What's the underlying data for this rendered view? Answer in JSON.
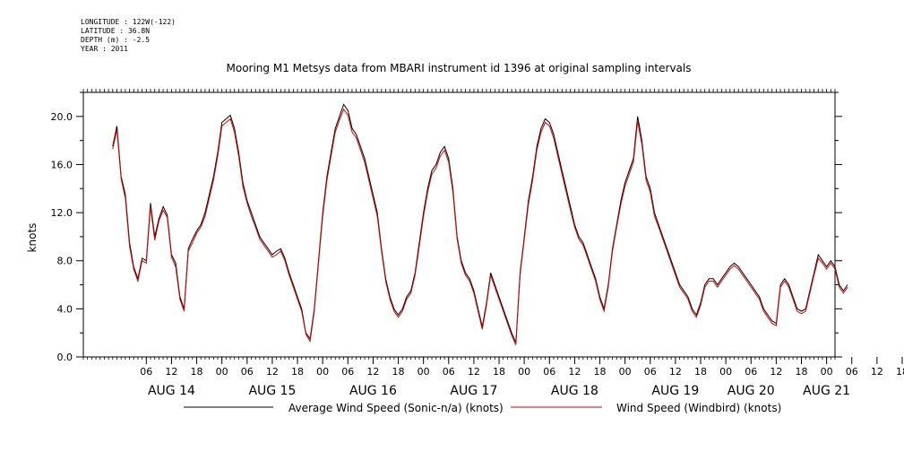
{
  "header": {
    "longitude": "LONGITUDE : 122W(-122)",
    "latitude": "LATITUDE : 36.8N",
    "depth": "DEPTH (m) : -2.5",
    "year": "YEAR : 2011"
  },
  "chart_data": {
    "type": "line",
    "title": "Mooring M1 Metsys data from MBARI instrument id 1396 at original sampling intervals",
    "ylabel": "knots",
    "xlabel": "",
    "ylim": [
      0,
      22
    ],
    "yticks": [
      0.0,
      4.0,
      8.0,
      12.0,
      16.0,
      20.0
    ],
    "ytick_labels": [
      "0.0",
      "4.0",
      "8.0",
      "12.0",
      "16.0",
      "20.0"
    ],
    "xlim_hours": [
      -9,
      170
    ],
    "hour_ticks": [
      "06",
      "12",
      "18",
      "00",
      "06",
      "12",
      "18",
      "00",
      "06",
      "12",
      "18",
      "00",
      "06",
      "12",
      "18",
      "00",
      "06",
      "12",
      "18",
      "00",
      "06",
      "12",
      "18",
      "00",
      "06",
      "12",
      "18",
      "00",
      "06",
      "12",
      "18",
      "00"
    ],
    "day_labels": [
      "AUG 14",
      "AUG 15",
      "AUG 16",
      "AUG 17",
      "AUG 18",
      "AUG 19",
      "AUG 20",
      "AUG 21"
    ],
    "grid": false,
    "legend_position": "bottom",
    "series": [
      {
        "name": "Average Wind Speed (Sonic-n/a) (knots)",
        "color": "#000000",
        "x_start": "AUG 13 22:00",
        "x_step_hours": 1,
        "values": [
          17.5,
          19.2,
          15.0,
          13.5,
          9.5,
          7.5,
          6.5,
          8.2,
          8.0,
          12.8,
          10.0,
          11.5,
          12.5,
          11.8,
          8.5,
          7.8,
          5.0,
          4.0,
          9.0,
          9.8,
          10.5,
          11.0,
          12.0,
          13.5,
          15.0,
          17.0,
          19.5,
          19.8,
          20.1,
          19.0,
          17.0,
          14.5,
          13.0,
          12.0,
          11.0,
          10.0,
          9.5,
          9.0,
          8.5,
          8.8,
          9.0,
          8.2,
          7.0,
          6.0,
          5.0,
          4.0,
          2.0,
          1.5,
          4.0,
          8.0,
          12.0,
          15.0,
          17.0,
          19.0,
          20.0,
          21.0,
          20.5,
          19.0,
          18.5,
          17.5,
          16.5,
          15.0,
          13.5,
          12.0,
          9.0,
          6.5,
          5.0,
          4.0,
          3.5,
          4.0,
          5.0,
          5.5,
          7.0,
          9.5,
          12.0,
          14.0,
          15.5,
          16.0,
          17.0,
          17.5,
          16.5,
          14.0,
          10.0,
          8.0,
          7.0,
          6.5,
          5.5,
          4.0,
          2.5,
          4.5,
          7.0,
          6.0,
          5.0,
          4.0,
          3.0,
          2.0,
          1.2,
          7.0,
          10.0,
          13.0,
          15.0,
          17.5,
          19.0,
          19.8,
          19.5,
          18.5,
          17.0,
          15.5,
          14.0,
          12.5,
          11.0,
          10.0,
          9.5,
          8.5,
          7.5,
          6.5,
          5.0,
          4.0,
          6.0,
          9.0,
          11.0,
          13.0,
          14.5,
          15.5,
          16.5,
          20.0,
          18.0,
          15.0,
          14.0,
          12.0,
          11.0,
          10.0,
          9.0,
          8.0,
          7.0,
          6.0,
          5.5,
          5.0,
          4.0,
          3.5,
          4.5,
          6.0,
          6.5,
          6.5,
          6.0,
          6.5,
          7.0,
          7.5,
          7.8,
          7.5,
          7.0,
          6.5,
          6.0,
          5.5,
          5.0,
          4.0,
          3.5,
          3.0,
          2.8,
          6.0,
          6.5,
          6.0,
          5.0,
          4.0,
          3.8,
          4.0,
          5.5,
          7.0,
          8.5,
          8.0,
          7.5,
          8.0,
          7.5,
          6.0,
          5.5,
          6.0
        ]
      },
      {
        "name": "Wind Speed (Windbird) (knots)",
        "color": "#e00000",
        "x_start": "AUG 13 22:00",
        "x_step_hours": 1,
        "values": [
          17.3,
          18.9,
          14.8,
          13.2,
          9.2,
          7.3,
          6.3,
          8.0,
          7.8,
          12.5,
          9.7,
          11.3,
          12.2,
          11.6,
          8.3,
          7.5,
          4.8,
          3.8,
          8.8,
          9.5,
          10.3,
          10.8,
          11.7,
          13.2,
          14.7,
          16.7,
          19.2,
          19.5,
          19.8,
          18.7,
          16.7,
          14.2,
          12.8,
          11.7,
          10.8,
          9.8,
          9.3,
          8.8,
          8.3,
          8.5,
          8.8,
          8.0,
          6.8,
          5.8,
          4.8,
          3.8,
          1.9,
          1.3,
          3.8,
          7.8,
          11.7,
          14.7,
          16.7,
          18.7,
          19.7,
          20.6,
          20.1,
          18.7,
          18.2,
          17.2,
          16.2,
          14.7,
          13.2,
          11.7,
          8.8,
          6.3,
          4.8,
          3.8,
          3.3,
          3.8,
          4.8,
          5.3,
          6.8,
          9.2,
          11.7,
          13.7,
          15.2,
          15.7,
          16.7,
          17.2,
          16.2,
          13.7,
          9.8,
          7.8,
          6.8,
          6.3,
          5.3,
          3.8,
          2.3,
          4.3,
          6.8,
          5.8,
          4.8,
          3.8,
          2.8,
          1.8,
          1.0,
          6.8,
          9.8,
          12.7,
          14.7,
          17.2,
          18.7,
          19.5,
          19.2,
          18.2,
          16.7,
          15.2,
          13.7,
          12.2,
          10.8,
          9.8,
          9.3,
          8.3,
          7.3,
          6.3,
          4.8,
          3.8,
          5.8,
          8.8,
          10.8,
          12.7,
          14.2,
          15.2,
          16.2,
          19.6,
          17.7,
          14.7,
          13.7,
          11.7,
          10.8,
          9.8,
          8.8,
          7.8,
          6.8,
          5.8,
          5.3,
          4.8,
          3.8,
          3.3,
          4.3,
          5.8,
          6.3,
          6.3,
          5.8,
          6.3,
          6.8,
          7.3,
          7.6,
          7.3,
          6.8,
          6.3,
          5.8,
          5.3,
          4.8,
          3.8,
          3.3,
          2.8,
          2.6,
          5.8,
          6.3,
          5.8,
          4.8,
          3.8,
          3.6,
          3.8,
          5.3,
          6.8,
          8.2,
          7.8,
          7.3,
          7.8,
          7.3,
          5.8,
          5.3,
          5.8
        ]
      }
    ]
  }
}
